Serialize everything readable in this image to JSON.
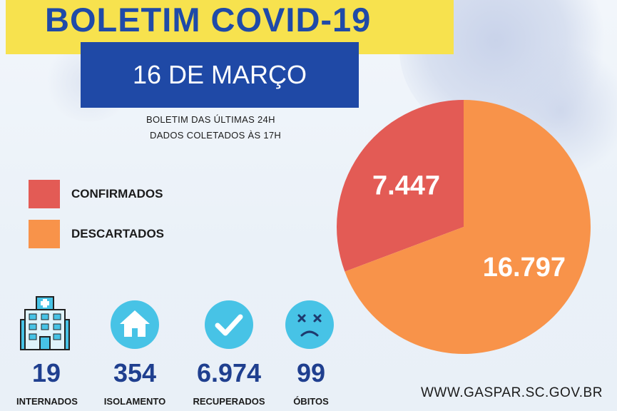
{
  "header": {
    "title": "BOLETIM COVID-19",
    "date": "16 DE MARÇO",
    "subtitle_line1": "BOLETIM DAS ÚLTIMAS 24H",
    "subtitle_line2": "DADOS COLETADOS ÀS  17H"
  },
  "colors": {
    "title_bar": "#f7e24e",
    "date_bar": "#1f49a6",
    "confirmados": "#e35b55",
    "descartados": "#f8934a",
    "stat_value": "#1f3f8f",
    "icon_circle": "#47c3e6"
  },
  "chart_data": {
    "type": "pie",
    "slices": [
      {
        "name": "CONFIRMADOS",
        "value": 7447,
        "label": "7.447",
        "color": "#e35b55"
      },
      {
        "name": "DESCARTADOS",
        "value": 16797,
        "label": "16.797",
        "color": "#f8934a"
      }
    ],
    "legend": [
      "CONFIRMADOS",
      "DESCARTADOS"
    ],
    "legend_position": "left"
  },
  "stats": [
    {
      "icon": "hospital-icon",
      "value": "19",
      "label": "INTERNADOS"
    },
    {
      "icon": "house-icon",
      "value": "354",
      "label": "ISOLAMENTO"
    },
    {
      "icon": "checkmark-icon",
      "value": "6.974",
      "label": "RECUPERADOS"
    },
    {
      "icon": "sad-face-icon",
      "value": "99",
      "label": "ÓBITOS"
    }
  ],
  "footer": {
    "url": "WWW.GASPAR.SC.GOV.BR"
  }
}
